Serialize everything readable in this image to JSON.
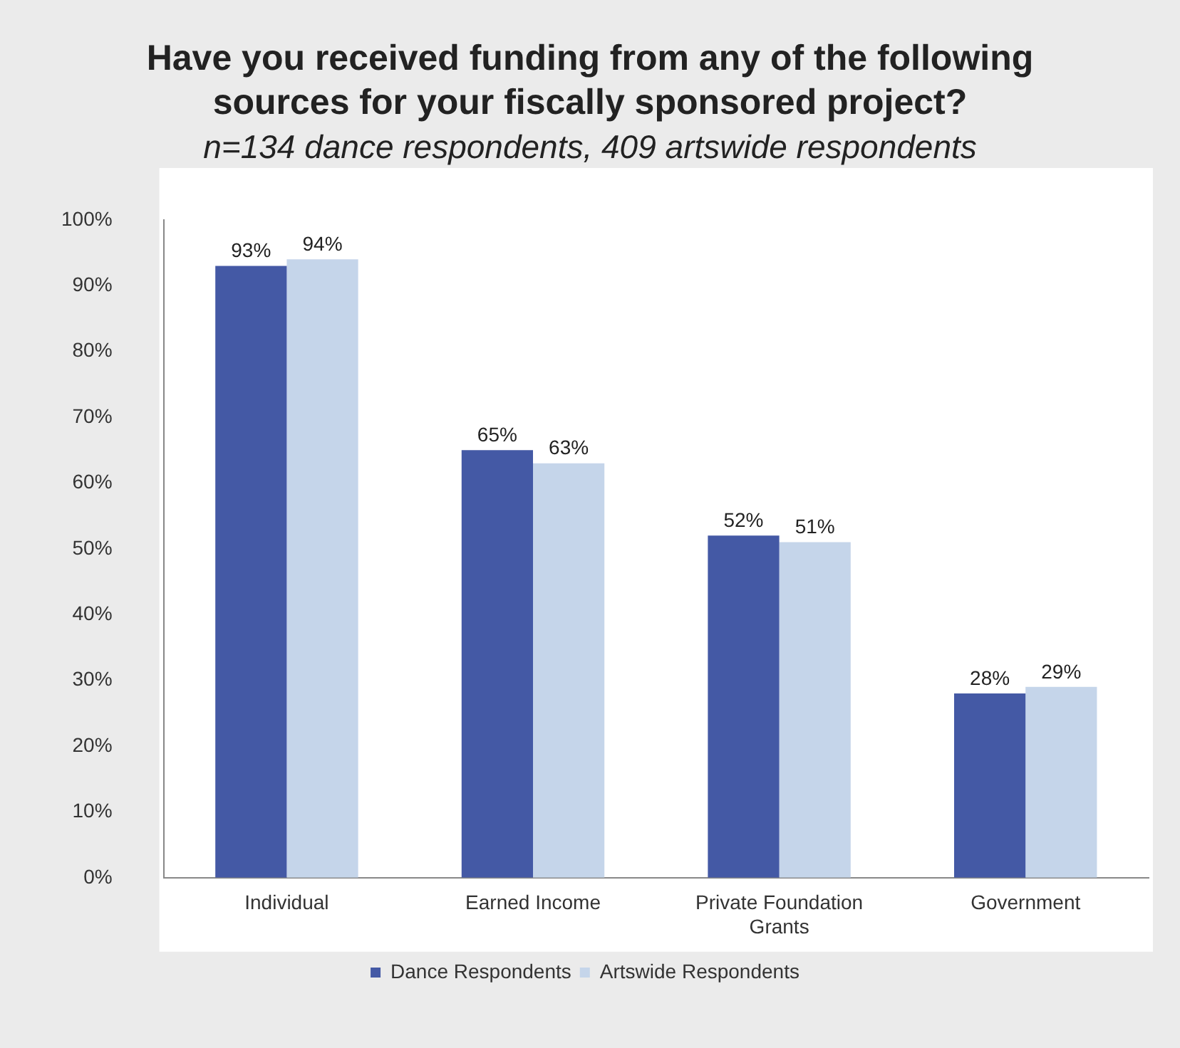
{
  "chart_data": {
    "type": "bar",
    "title": "Have you received funding from any of the following sources for your fiscally sponsored project?",
    "subtitle": "n=134 dance respondents, 409 artswide respondents",
    "categories": [
      "Individual",
      "Earned Income",
      "Private Foundation Grants",
      "Government"
    ],
    "series": [
      {
        "name": "Dance Respondents",
        "color": "#4459a5",
        "values": [
          93,
          65,
          52,
          28
        ],
        "value_labels": [
          "93%",
          "65%",
          "52%",
          "28%"
        ]
      },
      {
        "name": "Artswide Respondents",
        "color": "#c5d5ea",
        "values": [
          94,
          63,
          51,
          29
        ],
        "value_labels": [
          "94%",
          "63%",
          "51%",
          "29%"
        ]
      }
    ],
    "ylim": [
      0,
      100
    ],
    "yticks": [
      {
        "value": 0,
        "label": "0%"
      },
      {
        "value": 10,
        "label": "10%"
      },
      {
        "value": 20,
        "label": "20%"
      },
      {
        "value": 30,
        "label": "30%"
      },
      {
        "value": 40,
        "label": "40%"
      },
      {
        "value": 50,
        "label": "50%"
      },
      {
        "value": 60,
        "label": "60%"
      },
      {
        "value": 70,
        "label": "70%"
      },
      {
        "value": 80,
        "label": "80%"
      },
      {
        "value": 90,
        "label": "90%"
      },
      {
        "value": 100,
        "label": "100%"
      }
    ],
    "grid": false,
    "legend": "bottom"
  }
}
